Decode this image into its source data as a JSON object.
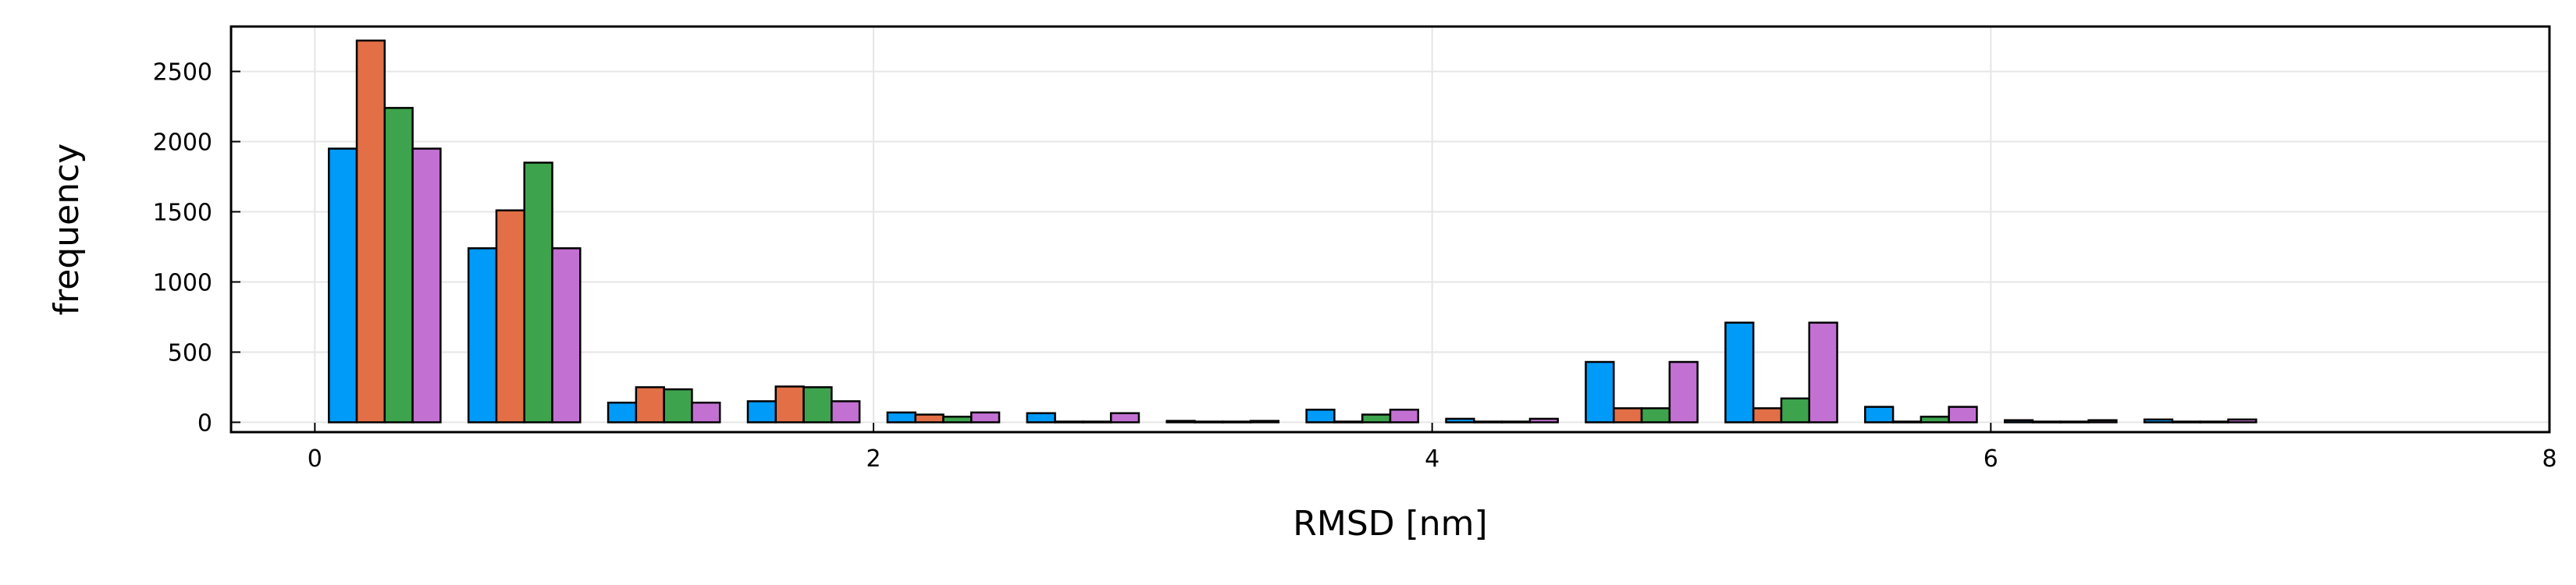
{
  "chart_data": {
    "type": "bar",
    "title": "",
    "xlabel": "RMSD [nm]",
    "ylabel": "frequency",
    "xlim": [
      -0.3,
      8
    ],
    "ylim": [
      -70,
      2820
    ],
    "xticks": [
      0,
      2,
      4,
      6,
      8
    ],
    "yticks": [
      0,
      500,
      1000,
      1500,
      2000,
      2500
    ],
    "grid": true,
    "legend": "none",
    "bin_centers": [
      0.25,
      0.75,
      1.25,
      1.75,
      2.25,
      2.75,
      3.25,
      3.75,
      4.25,
      4.75,
      5.25,
      5.75,
      6.25,
      6.75
    ],
    "bin_width": 0.5,
    "series": [
      {
        "color": "#009af9",
        "values": [
          1950,
          1240,
          140,
          150,
          70,
          65,
          10,
          90,
          25,
          430,
          710,
          110,
          15,
          20
        ]
      },
      {
        "color": "#e26f46",
        "values": [
          2720,
          1510,
          250,
          255,
          55,
          5,
          5,
          5,
          5,
          100,
          100,
          5,
          5,
          5
        ]
      },
      {
        "color": "#3da44d",
        "values": [
          2240,
          1850,
          235,
          250,
          40,
          5,
          5,
          55,
          5,
          100,
          170,
          40,
          5,
          5
        ]
      },
      {
        "color": "#c271d2",
        "values": [
          1950,
          1240,
          140,
          150,
          70,
          65,
          10,
          90,
          25,
          430,
          710,
          110,
          15,
          20
        ]
      }
    ]
  }
}
